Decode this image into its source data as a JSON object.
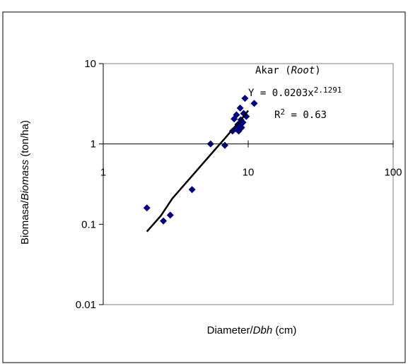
{
  "chart_data": {
    "type": "scatter",
    "xlabel": {
      "pre": "Diameter/",
      "ital": "Dbh",
      "post": " (cm)"
    },
    "ylabel": {
      "pre": "Biomasa/",
      "ital": "Biomass",
      "post": " (ton/ha)"
    },
    "x_scale": "log",
    "y_scale": "log",
    "xlim": [
      1,
      100
    ],
    "ylim": [
      0.01,
      10
    ],
    "x_ticks": [
      "1",
      "10",
      "100"
    ],
    "y_ticks": [
      "10",
      "1",
      "0.1",
      "0.01"
    ],
    "x_tick_values": [
      1,
      10,
      100
    ],
    "y_tick_values": [
      10,
      1,
      0.1,
      0.01
    ],
    "grid": false,
    "marker_color": "#000080",
    "line_color": "#000000",
    "plot_border_color": "#808080",
    "annotation": {
      "title_pre": "Akar (",
      "title_ital": "Root",
      "title_post": ")",
      "equation": "Y = 0.0203x",
      "exponent": "2.1291",
      "r2_pre": "R",
      "r2_sup": "2",
      "r2_post": " = 0.63"
    },
    "series": [
      {
        "points": [
          {
            "x": 2.0,
            "y": 0.16
          },
          {
            "x": 2.6,
            "y": 0.11
          },
          {
            "x": 2.9,
            "y": 0.13
          },
          {
            "x": 4.1,
            "y": 0.27
          },
          {
            "x": 5.5,
            "y": 1.0
          },
          {
            "x": 6.9,
            "y": 0.96
          },
          {
            "x": 7.8,
            "y": 1.45
          },
          {
            "x": 8.0,
            "y": 2.05
          },
          {
            "x": 8.2,
            "y": 1.55
          },
          {
            "x": 8.3,
            "y": 2.3
          },
          {
            "x": 8.5,
            "y": 1.75
          },
          {
            "x": 8.6,
            "y": 1.45
          },
          {
            "x": 8.8,
            "y": 2.8
          },
          {
            "x": 8.9,
            "y": 2.0
          },
          {
            "x": 9.0,
            "y": 1.6
          },
          {
            "x": 9.2,
            "y": 1.85
          },
          {
            "x": 9.3,
            "y": 2.4
          },
          {
            "x": 9.5,
            "y": 3.7
          },
          {
            "x": 9.7,
            "y": 2.2
          },
          {
            "x": 11.0,
            "y": 3.2
          }
        ]
      },
      {
        "type": "line",
        "x": [
          2.0,
          2.5,
          3.0,
          4.0,
          5.0,
          6.0,
          7.0,
          8.0,
          9.0,
          10.0
        ],
        "y": [
          0.081,
          0.128,
          0.21,
          0.38,
          0.604,
          0.88,
          1.206,
          1.598,
          2.04,
          2.6
        ]
      }
    ]
  }
}
